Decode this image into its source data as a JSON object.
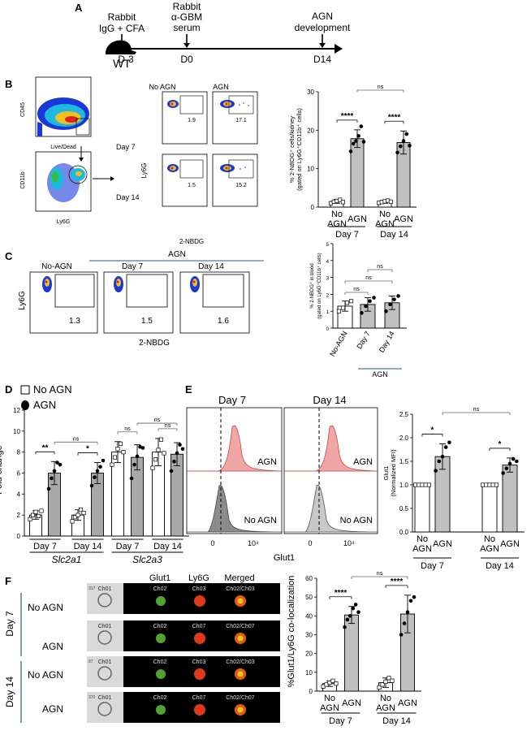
{
  "panels": {
    "A": {
      "label": "A",
      "mouse": "WT",
      "events": [
        {
          "above": [
            "Rabbit",
            "IgG + CFA"
          ],
          "below": "D-3"
        },
        {
          "above": [
            "Rabbit",
            "α-GBM",
            "serum"
          ],
          "below": "D0"
        },
        {
          "above": [
            "AGN",
            "development"
          ],
          "below": "D14"
        }
      ]
    },
    "B": {
      "label": "B",
      "gating": {
        "y1": "CD45",
        "x1": "Live/Dead",
        "y2": "CD11b",
        "x2": "Ly6G"
      },
      "facs": {
        "col_headers": [
          "No AGN",
          "AGN"
        ],
        "row_labels": [
          "Day 7",
          "Day 14"
        ],
        "gate_values": [
          "1.9",
          "17.1",
          "1.5",
          "15.2"
        ],
        "ylabel": "Ly6G",
        "xlabel": "2-NBDG"
      }
    },
    "C": {
      "label": "C",
      "group_label": "AGN",
      "col_headers": [
        "No-AGN",
        "Day 7",
        "Day 14"
      ],
      "gate_values": [
        "1.3",
        "1.5",
        "1.6"
      ],
      "ylabel": "Ly6G",
      "xlabel": "2-NBDG"
    },
    "D": {
      "label": "D",
      "legend": [
        "No AGN",
        "AGN"
      ]
    },
    "E": {
      "label": "E",
      "hist_titles": [
        "Day 7",
        "Day 14"
      ],
      "hist_labels": [
        "AGN",
        "No AGN"
      ],
      "xlabel": "Glut1",
      "ticks": [
        "0",
        "10⁴"
      ]
    },
    "F": {
      "label": "F",
      "ch_headers": [
        "Glut1",
        "Ly6G",
        "Merged"
      ],
      "strips": [
        {
          "labels": [
            "Ch01",
            "Ch02",
            "Ch03",
            "Ch02/Ch03"
          ],
          "num": "317"
        },
        {
          "labels": [
            "Ch01",
            "Ch02",
            "Ch07",
            "Ch02/Ch07"
          ],
          "num": ""
        },
        {
          "labels": [
            "Ch01",
            "Ch02",
            "Ch03",
            "Ch02/Ch03"
          ],
          "num": "87"
        },
        {
          "labels": [
            "Ch01",
            "Ch02",
            "Ch07",
            "Ch02/Ch07"
          ],
          "num": "370"
        }
      ],
      "row_labels": [
        "No AGN",
        "AGN",
        "No AGN",
        "AGN"
      ],
      "day_labels": [
        "Day 7",
        "Day 14"
      ]
    }
  },
  "chart_data": [
    {
      "type": "bar",
      "panel": "B",
      "ylabel": "% 2-NBDG⁺ cells/kidney (gated on Ly6G⁺CD11b⁺ cells)",
      "categories": [
        "No AGN",
        "AGN",
        "No AGN",
        "AGN"
      ],
      "groups": [
        "Day 7",
        "Day 14"
      ],
      "values": [
        1.5,
        17.8,
        1.4,
        16.8
      ],
      "errors": [
        0.5,
        2.3,
        0.4,
        3.0
      ],
      "points": [
        [
          1.0,
          1.4,
          1.6,
          1.9,
          1.3
        ],
        [
          14.5,
          16.5,
          17.2,
          18.5,
          21.0,
          17.0
        ],
        [
          1.1,
          1.3,
          1.5,
          1.7,
          1.4
        ],
        [
          14.2,
          15.8,
          17.2,
          19.0,
          16.0
        ]
      ],
      "ylim": [
        0,
        30
      ],
      "yticks": [
        0,
        10,
        20,
        30
      ],
      "sig": [
        {
          "a": 0,
          "b": 1,
          "text": "****"
        },
        {
          "a": 2,
          "b": 3,
          "text": "****"
        },
        {
          "a": 1,
          "b": 3,
          "text": "ns"
        }
      ]
    },
    {
      "type": "bar",
      "panel": "C",
      "ylabel": "% 2-NBDG⁺ in blood (gated on Ly6G⁺CD11b⁺ cells)",
      "categories": [
        "No-AGN",
        "Day 7",
        "Day 14"
      ],
      "group_label": "AGN",
      "values": [
        1.3,
        1.4,
        1.5
      ],
      "errors": [
        0.3,
        0.4,
        0.4
      ],
      "points": [
        [
          1.0,
          1.2,
          1.5,
          1.6
        ],
        [
          0.9,
          1.3,
          1.6,
          1.8
        ],
        [
          1.0,
          1.4,
          1.7,
          1.9
        ]
      ],
      "ylim": [
        0,
        5
      ],
      "yticks": [
        0,
        1,
        2,
        3,
        4,
        5
      ],
      "sig": [
        {
          "a": 0,
          "b": 1,
          "text": "ns"
        },
        {
          "a": 0,
          "b": 2,
          "text": "ns"
        },
        {
          "a": 1,
          "b": 2,
          "text": "ns"
        }
      ]
    },
    {
      "type": "bar",
      "panel": "D",
      "ylabel": "Fold change",
      "categories": [
        "No AGN",
        "AGN",
        "No AGN",
        "AGN",
        "No AGN",
        "AGN",
        "No AGN",
        "AGN"
      ],
      "groups": [
        "Day 7",
        "Day 14",
        "Day 7",
        "Day 14"
      ],
      "genes": [
        "Slc2a1",
        "Slc2a3"
      ],
      "values": [
        2.0,
        6.0,
        2.0,
        6.0,
        8.0,
        7.5,
        8.0,
        7.8
      ],
      "errors": [
        0.4,
        1.1,
        0.5,
        1.0,
        1.0,
        1.2,
        1.3,
        1.1
      ],
      "points": [
        [
          1.6,
          2.0,
          2.3,
          1.9,
          2.4
        ],
        [
          4.5,
          5.5,
          6.2,
          7.0,
          6.8
        ],
        [
          1.4,
          1.8,
          2.0,
          2.5,
          2.2
        ],
        [
          4.8,
          5.6,
          6.2,
          6.6,
          7.2
        ],
        [
          6.8,
          7.5,
          8.3,
          8.8,
          8.0
        ],
        [
          5.5,
          6.8,
          7.6,
          8.5,
          8.4
        ],
        [
          6.5,
          7.3,
          8.2,
          9.2,
          7.9
        ],
        [
          6.2,
          7.1,
          7.9,
          8.7,
          8.3
        ]
      ],
      "ylim": [
        0,
        12
      ],
      "yticks": [
        0,
        2,
        4,
        6,
        8,
        10,
        12
      ],
      "sig": [
        {
          "a": 0,
          "b": 1,
          "text": "**"
        },
        {
          "a": 2,
          "b": 3,
          "text": "*"
        },
        {
          "a": 1,
          "b": 3,
          "text": "ns"
        },
        {
          "a": 4,
          "b": 5,
          "text": "ns"
        },
        {
          "a": 6,
          "b": 7,
          "text": "ns"
        },
        {
          "a": 5,
          "b": 7,
          "text": "ns"
        }
      ]
    },
    {
      "type": "bar",
      "panel": "E",
      "ylabel": "Glut1 (Normalized MFI)",
      "categories": [
        "No AGN",
        "AGN",
        "No AGN",
        "AGN"
      ],
      "groups": [
        "Day 7",
        "Day 14"
      ],
      "values": [
        1.0,
        1.6,
        1.0,
        1.42
      ],
      "errors": [
        0.02,
        0.27,
        0.02,
        0.15
      ],
      "points": [
        [
          1.0,
          1.0,
          1.0,
          1.0,
          1.0
        ],
        [
          1.3,
          1.5,
          1.6,
          1.8,
          1.9
        ],
        [
          1.0,
          1.0,
          1.0,
          1.0,
          1.0
        ],
        [
          1.25,
          1.35,
          1.45,
          1.55,
          1.5
        ]
      ],
      "ylim": [
        0,
        2.5
      ],
      "yticks": [
        0,
        0.5,
        1.0,
        1.5,
        2.0,
        2.5
      ],
      "sig": [
        {
          "a": 0,
          "b": 1,
          "text": "*"
        },
        {
          "a": 2,
          "b": 3,
          "text": "*"
        },
        {
          "a": 1,
          "b": 3,
          "text": "ns"
        }
      ]
    },
    {
      "type": "bar",
      "panel": "F",
      "ylabel": "%Glut1/Ly6G co-localization",
      "categories": [
        "No AGN",
        "AGN",
        "No AGN",
        "AGN"
      ],
      "groups": [
        "Day 7",
        "Day 14"
      ],
      "values": [
        4.0,
        40.5,
        4.5,
        41.0
      ],
      "errors": [
        1.5,
        4.5,
        2.5,
        10.0
      ],
      "points": [
        [
          2.5,
          3.5,
          4.5,
          5.5,
          4.0
        ],
        [
          34,
          38,
          40,
          44,
          46,
          42
        ],
        [
          2.0,
          3.5,
          5.0,
          7.0,
          5.5
        ],
        [
          30,
          36,
          42,
          48,
          50
        ]
      ],
      "ylim": [
        0,
        60
      ],
      "yticks": [
        0,
        10,
        20,
        30,
        40,
        50,
        60
      ],
      "sig": [
        {
          "a": 0,
          "b": 1,
          "text": "****"
        },
        {
          "a": 2,
          "b": 3,
          "text": "****"
        },
        {
          "a": 1,
          "b": 3,
          "text": "ns"
        }
      ]
    }
  ]
}
